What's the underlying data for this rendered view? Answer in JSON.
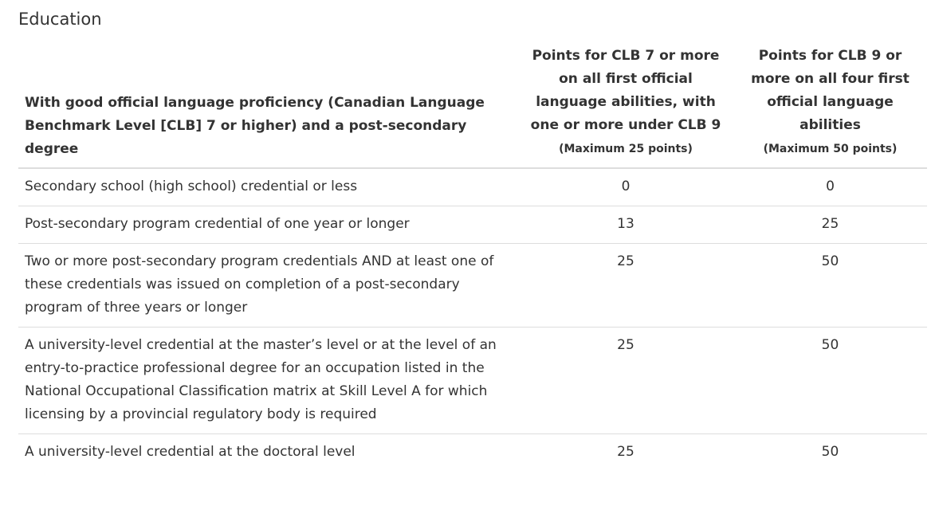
{
  "header": {
    "title": "Education"
  },
  "table": {
    "columns": [
      {
        "label": "With good official language proficiency (Canadian Language Benchmark Level [CLB] 7 or higher) and a post-secondary degree"
      },
      {
        "label": "Points for CLB 7 or more on all first official language abilities, with one or more under CLB 9",
        "note": "(Maximum 25 points)"
      },
      {
        "label": "Points for CLB 9 or more on all four first official language abilities",
        "note": "(Maximum 50 points)"
      }
    ],
    "rows": [
      [
        "Secondary school (high school) credential or less",
        0,
        0
      ],
      [
        "Post-secondary program credential of one year or longer",
        13,
        25
      ],
      [
        "Two or more post-secondary program credentials AND at least one of these credentials was issued on completion of a post-secondary program of three years or longer",
        25,
        50
      ],
      [
        "A university-level credential at the master’s level or at the level of an entry-to-practice professional degree for an occupation listed in the National Occupational Classification matrix at Skill Level A for which licensing by a provincial regulatory body is required",
        25,
        50
      ],
      [
        "A university-level credential at the doctoral level",
        25,
        50
      ]
    ]
  }
}
